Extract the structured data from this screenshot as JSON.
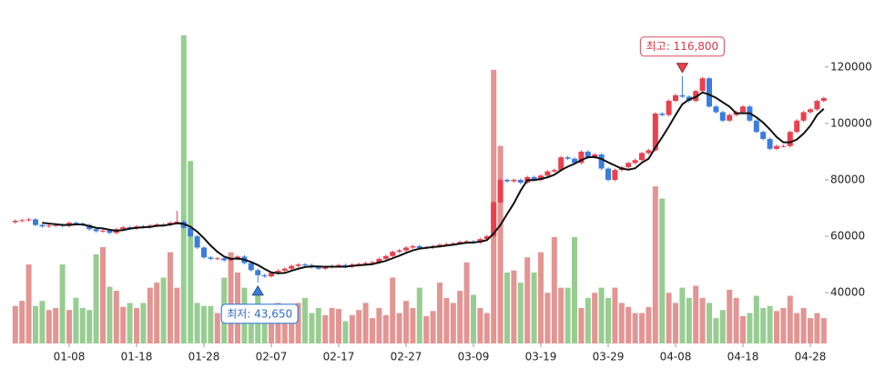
{
  "chart_data": {
    "type": "candlestick",
    "categories": [
      null,
      null,
      null,
      null,
      null,
      null,
      null,
      null,
      "01-08",
      null,
      null,
      null,
      null,
      null,
      null,
      null,
      null,
      null,
      "01-18",
      null,
      null,
      null,
      null,
      null,
      null,
      null,
      null,
      null,
      "01-28",
      null,
      null,
      null,
      null,
      null,
      null,
      null,
      null,
      null,
      "02-07",
      null,
      null,
      null,
      null,
      null,
      null,
      null,
      null,
      null,
      "02-17",
      null,
      null,
      null,
      null,
      null,
      null,
      null,
      null,
      null,
      "02-27",
      null,
      null,
      null,
      null,
      null,
      null,
      null,
      null,
      null,
      "03-09",
      null,
      null,
      null,
      null,
      null,
      null,
      null,
      null,
      null,
      "03-19",
      null,
      null,
      null,
      null,
      null,
      null,
      null,
      null,
      null,
      "03-29",
      null,
      null,
      null,
      null,
      null,
      null,
      null,
      null,
      null,
      "04-08",
      null,
      null,
      null,
      null,
      null,
      null,
      null,
      null,
      null,
      "04-18",
      null,
      null,
      null,
      null,
      null,
      null,
      null,
      null,
      null,
      "04-28",
      null,
      null
    ],
    "open": [
      65000,
      65500,
      65700,
      66000,
      64000,
      63500,
      63800,
      64000,
      63700,
      64800,
      64500,
      64000,
      62500,
      61800,
      62000,
      61200,
      62500,
      63200,
      62800,
      63500,
      63200,
      63800,
      64200,
      64000,
      64800,
      65200,
      63000,
      60000,
      56000,
      52500,
      52000,
      52200,
      51500,
      52000,
      52800,
      50500,
      48000,
      46200,
      45800,
      47000,
      47800,
      48500,
      49500,
      50000,
      49800,
      49000,
      48500,
      49000,
      49500,
      49800,
      49200,
      50000,
      50200,
      50500,
      50800,
      52000,
      53000,
      54500,
      55000,
      56000,
      56500,
      55800,
      56000,
      56500,
      57000,
      57200,
      57500,
      58000,
      58200,
      57800,
      59000,
      60000,
      72000,
      80000,
      79500,
      80000,
      79000,
      81000,
      80000,
      81500,
      83000,
      83500,
      88000,
      87500,
      86000,
      90000,
      88000,
      89000,
      84000,
      80000,
      83500,
      84500,
      86000,
      87000,
      89500,
      90500,
      103500,
      103000,
      108000,
      110000,
      109500,
      108000,
      111500,
      116000,
      106000,
      104000,
      101000,
      103000,
      104000,
      106000,
      101000,
      97000,
      94500,
      91000,
      92000,
      92000,
      97000,
      101000,
      104000,
      105000,
      108000
    ],
    "high": [
      66000,
      66200,
      66500,
      66500,
      64500,
      64300,
      64500,
      64500,
      65300,
      65300,
      65000,
      64500,
      63000,
      62500,
      62500,
      63000,
      63700,
      63700,
      64000,
      64000,
      64300,
      64700,
      64700,
      65300,
      69000,
      65700,
      63500,
      60500,
      56500,
      53000,
      52700,
      52700,
      52500,
      53300,
      53300,
      51000,
      48500,
      46700,
      47500,
      48300,
      49000,
      50000,
      50500,
      50500,
      50300,
      49500,
      49500,
      50000,
      50300,
      50300,
      50500,
      50700,
      51000,
      51300,
      52500,
      53500,
      55000,
      55500,
      56500,
      57000,
      57000,
      56500,
      57000,
      57500,
      57700,
      58000,
      58500,
      58700,
      58700,
      59500,
      60500,
      72500,
      80500,
      80500,
      80500,
      80500,
      81500,
      81500,
      82000,
      83500,
      84000,
      88500,
      88500,
      88000,
      90500,
      90500,
      89500,
      89500,
      84500,
      84000,
      85000,
      86500,
      87500,
      90000,
      91000,
      104000,
      104000,
      108500,
      110500,
      116800,
      110000,
      112000,
      116500,
      116500,
      106500,
      104500,
      103500,
      104500,
      106500,
      106500,
      101500,
      97500,
      95000,
      92500,
      92500,
      97500,
      101500,
      104500,
      105500,
      108500,
      109500
    ],
    "low": [
      64500,
      65000,
      65200,
      63500,
      63000,
      63000,
      63300,
      63200,
      63200,
      64000,
      63500,
      62000,
      61300,
      61300,
      60700,
      60700,
      62000,
      62300,
      62300,
      62700,
      62700,
      63300,
      63500,
      63500,
      64300,
      62500,
      59500,
      55500,
      52000,
      51500,
      51500,
      51000,
      51000,
      51500,
      50000,
      47500,
      43650,
      45300,
      45300,
      46500,
      47300,
      48000,
      49000,
      49300,
      48500,
      48000,
      48000,
      48500,
      49000,
      48700,
      48700,
      49500,
      49700,
      50000,
      50300,
      51500,
      52500,
      54000,
      54500,
      55500,
      55300,
      55300,
      55500,
      56000,
      56500,
      56700,
      57000,
      57500,
      57300,
      57300,
      58500,
      59500,
      71500,
      79000,
      79000,
      78500,
      78500,
      79500,
      79500,
      81000,
      82500,
      83000,
      87000,
      85500,
      85500,
      87500,
      87500,
      83500,
      79500,
      79500,
      83000,
      84000,
      85500,
      86500,
      89000,
      90000,
      102500,
      102500,
      107500,
      109000,
      107500,
      107500,
      111000,
      105500,
      103500,
      100500,
      100500,
      102500,
      103500,
      100500,
      96500,
      94000,
      90500,
      90500,
      91500,
      91500,
      96500,
      100500,
      103500,
      104500,
      107500
    ],
    "close": [
      65500,
      65700,
      66000,
      64000,
      63500,
      63800,
      64000,
      63700,
      64800,
      64500,
      64000,
      62500,
      61800,
      62000,
      61200,
      62500,
      63200,
      62800,
      63500,
      63200,
      63800,
      64200,
      64000,
      64800,
      65200,
      63000,
      60000,
      56000,
      52500,
      52000,
      52200,
      51500,
      52000,
      52800,
      50500,
      48000,
      46200,
      45800,
      47000,
      47800,
      48500,
      49500,
      50000,
      49800,
      49000,
      48500,
      49000,
      49500,
      49800,
      49200,
      50000,
      50200,
      50500,
      50800,
      52000,
      53000,
      54500,
      55000,
      56000,
      56500,
      55800,
      56000,
      56500,
      57000,
      57200,
      57500,
      58000,
      58200,
      57800,
      59000,
      60000,
      72000,
      80000,
      79500,
      80000,
      79000,
      81000,
      80000,
      81500,
      83000,
      83500,
      88000,
      87500,
      86000,
      90000,
      88000,
      89000,
      84000,
      80000,
      83500,
      84500,
      86000,
      87000,
      89500,
      90500,
      103500,
      103000,
      108000,
      110000,
      109500,
      108000,
      111500,
      116000,
      106000,
      104000,
      101000,
      103000,
      104000,
      106000,
      101000,
      97000,
      94500,
      91000,
      92000,
      92000,
      97000,
      101000,
      104000,
      105000,
      108000,
      109000
    ],
    "ma": [
      null,
      null,
      null,
      null,
      64800,
      64500,
      64300,
      64000,
      64000,
      64200,
      64200,
      63600,
      63000,
      62800,
      62300,
      62000,
      62200,
      62700,
      63000,
      63200,
      63300,
      63700,
      63800,
      64200,
      64600,
      64400,
      63400,
      61600,
      59300,
      56700,
      54500,
      52800,
      52000,
      52100,
      51700,
      50900,
      49800,
      48400,
      47200,
      46900,
      47000,
      47800,
      48500,
      49100,
      49300,
      49300,
      49200,
      49200,
      49200,
      49200,
      49500,
      49700,
      49900,
      50100,
      50700,
      51300,
      52200,
      53100,
      54100,
      55000,
      55600,
      55900,
      56200,
      56400,
      56700,
      57000,
      57400,
      57700,
      57800,
      58100,
      58600,
      61000,
      64000,
      67900,
      71700,
      76200,
      79900,
      79900,
      80300,
      80900,
      81800,
      83400,
      84700,
      85700,
      87000,
      88000,
      88100,
      87400,
      86200,
      85100,
      84000,
      83600,
      84100,
      86100,
      87500,
      91500,
      95100,
      98900,
      103000,
      106800,
      108500,
      109400,
      111000,
      110200,
      109100,
      107500,
      106000,
      103600,
      103600,
      103600,
      102200,
      100300,
      97900,
      95200,
      93300,
      93300,
      94300,
      96400,
      99200,
      103000,
      105200
    ],
    "volume": [
      37,
      42,
      78,
      37,
      42,
      33,
      35,
      78,
      33,
      45,
      35,
      33,
      88,
      95,
      56,
      52,
      36,
      40,
      35,
      40,
      55,
      60,
      65,
      90,
      55,
      304,
      180,
      40,
      37,
      37,
      30,
      65,
      90,
      70,
      55,
      35,
      50,
      30,
      28,
      40,
      35,
      30,
      40,
      45,
      30,
      35,
      28,
      35,
      34,
      22,
      28,
      33,
      40,
      25,
      35,
      28,
      65,
      30,
      42,
      35,
      55,
      27,
      32,
      60,
      45,
      40,
      52,
      80,
      48,
      35,
      30,
      270,
      195,
      70,
      72,
      60,
      85,
      70,
      90,
      50,
      105,
      55,
      55,
      105,
      35,
      45,
      50,
      55,
      45,
      55,
      40,
      36,
      30,
      30,
      36,
      155,
      143,
      50,
      40,
      55,
      45,
      57,
      45,
      40,
      25,
      33,
      53,
      45,
      27,
      30,
      47,
      35,
      37,
      32,
      35,
      47,
      30,
      35,
      25,
      30,
      25
    ],
    "up_color": "#e8414f",
    "down_color": "#3b7ddd",
    "volume_up_color": "#e39593",
    "volume_down_color": "#98cd92",
    "ma_color": "#111111",
    "ylim": [
      22000,
      137000
    ],
    "yticks": [
      40000,
      60000,
      80000,
      100000,
      120000
    ],
    "volume_ylim": [
      0,
      320
    ],
    "high_label": "최고: 116,800",
    "low_label": "최저: 43,650"
  }
}
